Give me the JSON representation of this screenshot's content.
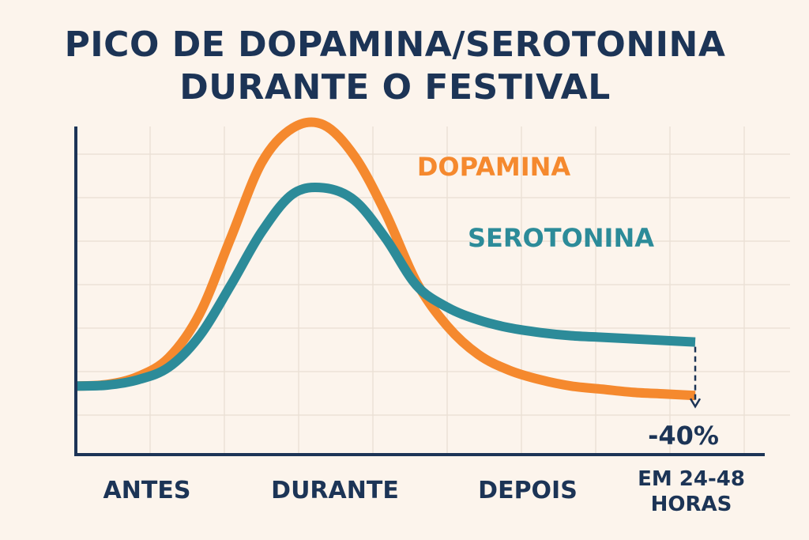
{
  "chart_data": {
    "type": "line",
    "title_lines": [
      "PICO DE DOPAMINA/SEROTONINA",
      "DURANTE O FESTIVAL"
    ],
    "categories": [
      "ANTES",
      "DURANTE",
      "DEPOIS",
      "EM 24-48 HORAS"
    ],
    "category_label_lines": [
      [
        "ANTES"
      ],
      [
        "DURANTE"
      ],
      [
        "DEPOIS"
      ],
      [
        "EM 24-48",
        "HORAS"
      ]
    ],
    "x": [
      0,
      0.5,
      1,
      1.5,
      2,
      2.5,
      3,
      3.5,
      4,
      4.5,
      5,
      5.5,
      6,
      6.5,
      7,
      7.5,
      8,
      8.5,
      9,
      9.5,
      10
    ],
    "xlim": [
      0,
      10
    ],
    "ylim": [
      0,
      100
    ],
    "grid": true,
    "series": [
      {
        "name": "DOPAMINA",
        "color": "#f5892e",
        "values": [
          15,
          15.5,
          18,
          24,
          38,
          62,
          86,
          97,
          98,
          88,
          70,
          48,
          34,
          25,
          20,
          17,
          15,
          14,
          13,
          12.5,
          12
        ]
      },
      {
        "name": "SEROTONINA",
        "color": "#2c8b99",
        "values": [
          15,
          15.3,
          17,
          21,
          31,
          47,
          64,
          76,
          78,
          74,
          62,
          47,
          40,
          36,
          33.5,
          32,
          31,
          30.5,
          30,
          29.5,
          29
        ]
      }
    ],
    "annotation": {
      "text": "-40%",
      "at_x": 10
    },
    "colors": {
      "axis": "#1c3456",
      "grid": "#ebe1d6",
      "background": "#fcf4ec"
    }
  }
}
